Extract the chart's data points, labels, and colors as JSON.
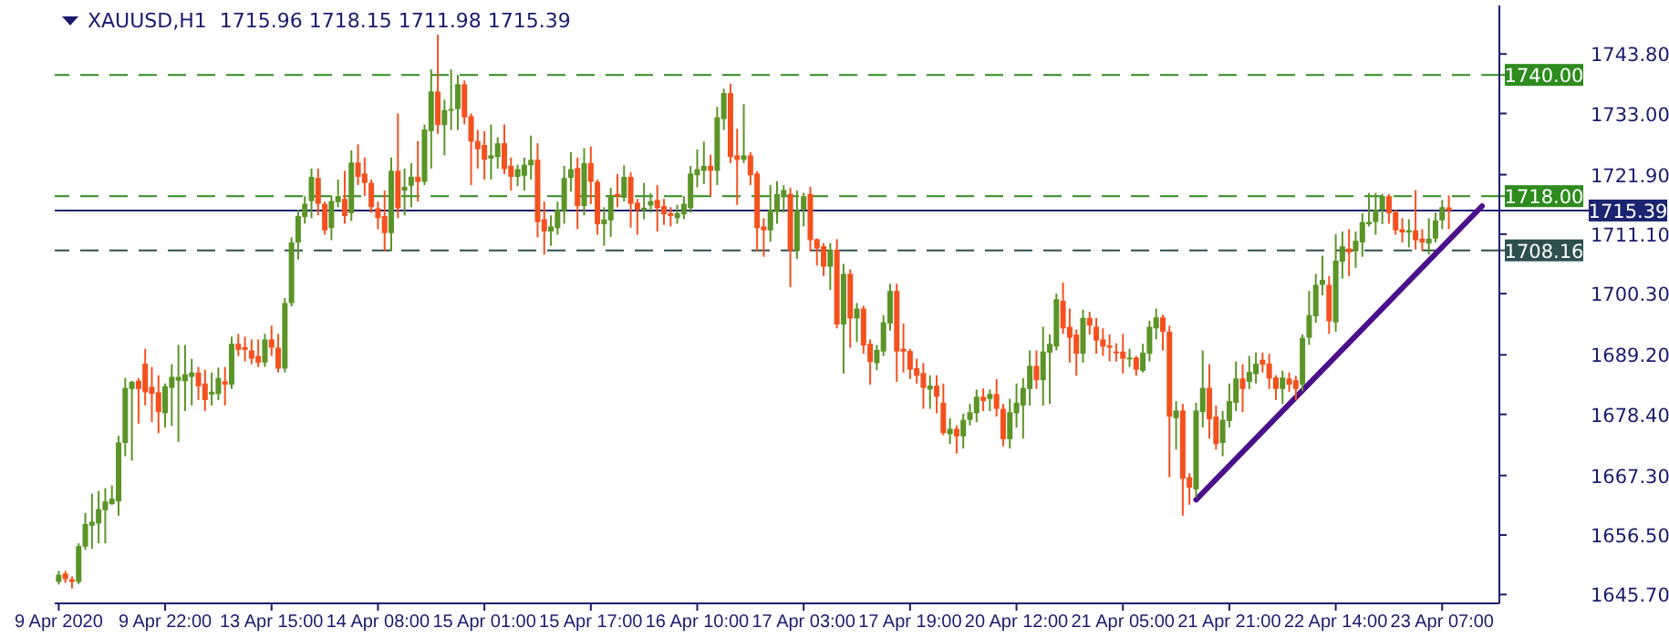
{
  "chart_data": {
    "type": "candlestick",
    "title": "XAUUSD,H1  1715.96 1718.15 1711.98 1715.39",
    "categories": [
      "9 Apr 2020",
      null,
      null,
      null,
      null,
      null,
      null,
      null,
      null,
      null,
      null,
      null,
      null,
      null,
      null,
      null,
      "9 Apr 22:00",
      null,
      null,
      null,
      null,
      null,
      null,
      null,
      null,
      null,
      null,
      null,
      null,
      null,
      null,
      null,
      "13 Apr 15:00",
      null,
      null,
      null,
      null,
      null,
      null,
      null,
      null,
      null,
      null,
      null,
      null,
      null,
      null,
      null,
      "14 Apr 08:00",
      null,
      null,
      null,
      null,
      null,
      null,
      null,
      null,
      null,
      null,
      null,
      null,
      null,
      null,
      null,
      "15 Apr 01:00",
      null,
      null,
      null,
      null,
      null,
      null,
      null,
      null,
      null,
      null,
      null,
      null,
      null,
      null,
      null,
      "15 Apr 17:00",
      null,
      null,
      null,
      null,
      null,
      null,
      null,
      null,
      null,
      null,
      null,
      null,
      null,
      null,
      null,
      "16 Apr 10:00",
      null,
      null,
      null,
      null,
      null,
      null,
      null,
      null,
      null,
      null,
      null,
      null,
      null,
      null,
      null,
      "17 Apr 03:00",
      null,
      null,
      null,
      null,
      null,
      null,
      null,
      null,
      null,
      null,
      null,
      null,
      null,
      null,
      null,
      "17 Apr 19:00",
      null,
      null,
      null,
      null,
      null,
      null,
      null,
      null,
      null,
      null,
      null,
      null,
      null,
      null,
      null,
      "20 Apr 12:00",
      null,
      null,
      null,
      null,
      null,
      null,
      null,
      null,
      null,
      null,
      null,
      null,
      null,
      null,
      null,
      "21 Apr 05:00",
      null,
      null,
      null,
      null,
      null,
      null,
      null,
      null,
      null,
      null,
      null,
      null,
      null,
      null,
      null,
      "21 Apr 21:00",
      null,
      null,
      null,
      null,
      null,
      null,
      null,
      null,
      null,
      null,
      null,
      null,
      null,
      null,
      null,
      "22 Apr 14:00",
      null,
      null,
      null,
      null,
      null,
      null,
      null,
      null,
      null,
      null,
      null,
      null,
      null,
      null,
      null,
      "23 Apr 07:00",
      null,
      null,
      null,
      null,
      null,
      null,
      null,
      null
    ],
    "series": [
      {
        "type": "candlestick",
        "ohlc": [
          [
            1648,
            1650,
            1647.5,
            1649.3
          ],
          [
            1649.5,
            1650,
            1647.8,
            1648.5
          ],
          [
            1648.5,
            1649,
            1646.8,
            1648
          ],
          [
            1648,
            1655,
            1647.6,
            1654.5
          ],
          [
            1654.4,
            1660.5,
            1653.8,
            1658.5
          ],
          [
            1658.2,
            1664,
            1654,
            1658.9
          ],
          [
            1658.6,
            1664.5,
            1655,
            1661.2
          ],
          [
            1661,
            1665,
            1655,
            1662.6
          ],
          [
            1662.1,
            1665.5,
            1662,
            1663.1
          ],
          [
            1662.6,
            1674.5,
            1660,
            1673.3
          ],
          [
            1673.2,
            1685,
            1670.8,
            1683.2
          ],
          [
            1683,
            1684.5,
            1670,
            1684.3
          ],
          [
            1684.5,
            1685,
            1676.7,
            1683
          ],
          [
            1687.6,
            1690.3,
            1680,
            1682.4
          ],
          [
            1683.4,
            1687,
            1677,
            1682.1
          ],
          [
            1682.4,
            1685.5,
            1675,
            1678.8
          ],
          [
            1678.6,
            1684,
            1676,
            1683.5
          ],
          [
            1683.2,
            1687.5,
            1676.3,
            1685.2
          ],
          [
            1684.5,
            1691,
            1673.4,
            1685.2
          ],
          [
            1684.4,
            1691,
            1679,
            1685.7
          ],
          [
            1685.2,
            1688.5,
            1680,
            1686
          ],
          [
            1686,
            1687,
            1681,
            1683.5
          ],
          [
            1684,
            1686.5,
            1679,
            1681
          ],
          [
            1682,
            1686,
            1680,
            1682.5
          ],
          [
            1682.1,
            1686.9,
            1681,
            1685
          ],
          [
            1684.4,
            1687,
            1680,
            1683.8
          ],
          [
            1683.8,
            1692.5,
            1683,
            1691.2
          ],
          [
            1691.2,
            1693,
            1689,
            1690.1
          ],
          [
            1690.6,
            1692.5,
            1688,
            1690.1
          ],
          [
            1690,
            1692,
            1687.5,
            1688.5
          ],
          [
            1689,
            1692,
            1687,
            1687.8
          ],
          [
            1687.8,
            1693,
            1687,
            1692
          ],
          [
            1692,
            1694.5,
            1689,
            1690.5
          ],
          [
            1690.5,
            1693,
            1686,
            1686.7
          ],
          [
            1686.7,
            1699.5,
            1686,
            1698.6
          ],
          [
            1698.6,
            1710.5,
            1698,
            1709.6
          ],
          [
            1709.6,
            1715.5,
            1706.5,
            1714.4
          ],
          [
            1714.2,
            1718,
            1713,
            1716.6
          ],
          [
            1717.1,
            1723,
            1714,
            1721.5
          ],
          [
            1721.3,
            1723,
            1714.5,
            1716.6
          ],
          [
            1716.6,
            1717,
            1711,
            1711.8
          ],
          [
            1712.2,
            1718,
            1710,
            1717.1
          ],
          [
            1716.9,
            1721,
            1716,
            1718
          ],
          [
            1717.5,
            1722.6,
            1713,
            1714.4
          ],
          [
            1714.9,
            1726.3,
            1713.5,
            1724.1
          ],
          [
            1724.1,
            1727.4,
            1720,
            1721.5
          ],
          [
            1722.1,
            1725,
            1718,
            1720.4
          ],
          [
            1720.4,
            1721,
            1715,
            1716
          ],
          [
            1715.8,
            1717,
            1712,
            1714
          ],
          [
            1714.4,
            1719,
            1708,
            1711.3
          ],
          [
            1711.3,
            1725,
            1708,
            1722.6
          ],
          [
            1722.6,
            1733,
            1714,
            1715.8
          ],
          [
            1719,
            1723,
            1714.5,
            1719.7
          ],
          [
            1719.9,
            1724,
            1716,
            1721.5
          ],
          [
            1721.5,
            1728,
            1717,
            1720.6
          ],
          [
            1720.6,
            1731,
            1720,
            1730.1
          ],
          [
            1729.8,
            1741,
            1723,
            1737
          ],
          [
            1737,
            1747.3,
            1729.3,
            1730.9
          ],
          [
            1730.9,
            1735.5,
            1725.4,
            1733.6
          ],
          [
            1733.6,
            1741,
            1730,
            1733.8
          ],
          [
            1733.8,
            1740,
            1730,
            1738.3
          ],
          [
            1738.3,
            1739,
            1731,
            1732.3
          ],
          [
            1732.5,
            1733,
            1720,
            1727.9
          ],
          [
            1728,
            1730,
            1723,
            1726.5
          ],
          [
            1727.3,
            1729.8,
            1721,
            1724.6
          ],
          [
            1724.8,
            1731,
            1721,
            1725.4
          ],
          [
            1725.1,
            1728.7,
            1723,
            1727.6
          ],
          [
            1727.6,
            1731,
            1722,
            1722.9
          ],
          [
            1723.5,
            1725,
            1719,
            1721.5
          ],
          [
            1721.5,
            1723.7,
            1719.8,
            1722.9
          ],
          [
            1721.7,
            1725,
            1719,
            1723.7
          ],
          [
            1723.6,
            1729,
            1721,
            1724.6
          ],
          [
            1724.6,
            1727.6,
            1710.5,
            1713.3
          ],
          [
            1713.8,
            1717,
            1707.4,
            1711.6
          ],
          [
            1711.6,
            1714.5,
            1709,
            1712.5
          ],
          [
            1712.2,
            1717,
            1711,
            1715.5
          ],
          [
            1715.3,
            1723.5,
            1713,
            1721.3
          ],
          [
            1721.3,
            1726,
            1718.8,
            1722.9
          ],
          [
            1723.1,
            1725,
            1712,
            1716.2
          ],
          [
            1716.2,
            1726.7,
            1714.5,
            1724
          ],
          [
            1724,
            1727,
            1716.5,
            1720.6
          ],
          [
            1720.6,
            1721,
            1711,
            1712.9
          ],
          [
            1712.9,
            1716,
            1709,
            1713.8
          ],
          [
            1713.6,
            1719.5,
            1710.6,
            1718.2
          ],
          [
            1718.4,
            1722,
            1716,
            1718
          ],
          [
            1717.7,
            1723.6,
            1717,
            1721.5
          ],
          [
            1721.5,
            1722.3,
            1712.3,
            1716.6
          ],
          [
            1716.8,
            1717.5,
            1711,
            1715.5
          ],
          [
            1715.4,
            1720.4,
            1713.8,
            1715.9
          ],
          [
            1716.3,
            1718.5,
            1715,
            1717.1
          ],
          [
            1717.3,
            1720,
            1711.6,
            1715.8
          ],
          [
            1716.2,
            1717.5,
            1712.8,
            1714.7
          ],
          [
            1714.9,
            1716,
            1712.5,
            1714.4
          ],
          [
            1714,
            1716.4,
            1713,
            1714.9
          ],
          [
            1714.7,
            1718,
            1713.8,
            1716.6
          ],
          [
            1715.8,
            1723.5,
            1715,
            1722.1
          ],
          [
            1721.8,
            1726.5,
            1719.6,
            1722.9
          ],
          [
            1722.6,
            1727.9,
            1720.2,
            1723.5
          ],
          [
            1723.5,
            1725.5,
            1718,
            1722.6
          ],
          [
            1722.6,
            1734.2,
            1720,
            1732.3
          ],
          [
            1732,
            1737.5,
            1730,
            1736.7
          ],
          [
            1736.7,
            1738.4,
            1724,
            1725.1
          ],
          [
            1725.4,
            1730.2,
            1716.4,
            1724.6
          ],
          [
            1724.6,
            1734.7,
            1724,
            1725.4
          ],
          [
            1725.4,
            1726,
            1720,
            1721.8
          ],
          [
            1722.1,
            1722.5,
            1708,
            1712.2
          ],
          [
            1712.5,
            1714,
            1707,
            1711.8
          ],
          [
            1711.8,
            1720,
            1709.7,
            1715.5
          ],
          [
            1715.1,
            1720.7,
            1713,
            1718.4
          ],
          [
            1718.2,
            1720,
            1715,
            1719.1
          ],
          [
            1718.4,
            1719.5,
            1701.5,
            1708.1
          ],
          [
            1708.1,
            1719,
            1706.6,
            1715.5
          ],
          [
            1715.5,
            1718.6,
            1712.5,
            1718
          ],
          [
            1718.4,
            1719.7,
            1708,
            1710
          ],
          [
            1710.2,
            1710.3,
            1705.4,
            1708.5
          ],
          [
            1708.9,
            1709.5,
            1703.5,
            1705.2
          ],
          [
            1705.2,
            1709.5,
            1701,
            1708.3
          ],
          [
            1708.3,
            1710.2,
            1694,
            1694.7
          ],
          [
            1694.7,
            1705.7,
            1685.8,
            1703.9
          ],
          [
            1703.9,
            1704.7,
            1690.5,
            1695.8
          ],
          [
            1695.8,
            1698.6,
            1691.5,
            1697.6
          ],
          [
            1697.6,
            1698.1,
            1689.4,
            1690.9
          ],
          [
            1691.2,
            1692,
            1683.8,
            1687.9
          ],
          [
            1687.7,
            1691,
            1686.4,
            1690.1
          ],
          [
            1689.8,
            1696.4,
            1689,
            1695.1
          ],
          [
            1694.9,
            1702.1,
            1693.6,
            1700.8
          ],
          [
            1700.8,
            1702.1,
            1684.3,
            1689.8
          ],
          [
            1690.3,
            1694.9,
            1686,
            1689.8
          ],
          [
            1689.9,
            1690.3,
            1684.8,
            1686.5
          ],
          [
            1686.8,
            1688.5,
            1684,
            1685.4
          ],
          [
            1685.9,
            1687.7,
            1679.4,
            1683.2
          ],
          [
            1682.9,
            1685.5,
            1679.4,
            1683.6
          ],
          [
            1683.6,
            1685.5,
            1678.6,
            1681.6
          ],
          [
            1680.5,
            1684,
            1674.6,
            1675
          ],
          [
            1674.8,
            1677.7,
            1673,
            1675.8
          ],
          [
            1675.8,
            1676.4,
            1671.3,
            1674.4
          ],
          [
            1674.4,
            1678.5,
            1672.2,
            1677.4
          ],
          [
            1677.4,
            1680.3,
            1676.4,
            1678.8
          ],
          [
            1678.6,
            1682.9,
            1677,
            1681.6
          ],
          [
            1681.6,
            1683.1,
            1679,
            1680.8
          ],
          [
            1681.2,
            1682.9,
            1679,
            1682.1
          ],
          [
            1682.1,
            1684.8,
            1678,
            1679.4
          ],
          [
            1679.4,
            1680.3,
            1672.6,
            1673.9
          ],
          [
            1673.9,
            1681.2,
            1672.2,
            1678.8
          ],
          [
            1678.6,
            1684,
            1676,
            1680.5
          ],
          [
            1680,
            1685,
            1674,
            1683.2
          ],
          [
            1683,
            1690,
            1680,
            1687.2
          ],
          [
            1687.2,
            1690,
            1683,
            1684.6
          ],
          [
            1684.6,
            1694.3,
            1680,
            1689.8
          ],
          [
            1689.6,
            1692.9,
            1680.3,
            1691.2
          ],
          [
            1690.7,
            1700.3,
            1690,
            1699.3
          ],
          [
            1699,
            1702.3,
            1693,
            1694
          ],
          [
            1694.3,
            1697.6,
            1687.8,
            1692.3
          ],
          [
            1692.9,
            1693.8,
            1685.4,
            1689.4
          ],
          [
            1689.4,
            1697.4,
            1687.8,
            1695.9
          ],
          [
            1695.9,
            1697,
            1692.9,
            1694.5
          ],
          [
            1694.3,
            1695.9,
            1689.4,
            1691.8
          ],
          [
            1692,
            1694,
            1689,
            1690.7
          ],
          [
            1690.9,
            1692.9,
            1688,
            1690.5
          ],
          [
            1689.8,
            1691.3,
            1688,
            1689.6
          ],
          [
            1689.8,
            1693,
            1685.8,
            1688.5
          ],
          [
            1688.5,
            1690.3,
            1687,
            1688.7
          ],
          [
            1688.7,
            1689,
            1685.4,
            1686.5
          ],
          [
            1686.3,
            1691.2,
            1686,
            1689.6
          ],
          [
            1689.4,
            1695.4,
            1688,
            1694.3
          ],
          [
            1694,
            1697.6,
            1692,
            1696
          ],
          [
            1696,
            1696.5,
            1690,
            1693.4
          ],
          [
            1693.4,
            1694.5,
            1667,
            1678
          ],
          [
            1677.7,
            1680.8,
            1672,
            1679.1
          ],
          [
            1679.1,
            1680.3,
            1660,
            1666.7
          ],
          [
            1667,
            1667.7,
            1662,
            1665.1
          ],
          [
            1664.8,
            1680.5,
            1663.3,
            1679.1
          ],
          [
            1678.8,
            1690,
            1676,
            1683.2
          ],
          [
            1683.2,
            1687.5,
            1674,
            1677.5
          ],
          [
            1678,
            1680,
            1672,
            1673
          ],
          [
            1673.2,
            1679,
            1670.8,
            1677.4
          ],
          [
            1677.2,
            1684,
            1676,
            1680.8
          ],
          [
            1680.5,
            1688,
            1679,
            1684.9
          ],
          [
            1684.9,
            1687.5,
            1678.8,
            1683
          ],
          [
            1684.3,
            1689,
            1683,
            1686.1
          ],
          [
            1685.7,
            1689.6,
            1684,
            1687.6
          ],
          [
            1688.3,
            1689.6,
            1686,
            1687.4
          ],
          [
            1687.6,
            1689.4,
            1683,
            1684.9
          ],
          [
            1685.1,
            1685.5,
            1681,
            1683
          ],
          [
            1683,
            1686.3,
            1680.3,
            1685.1
          ],
          [
            1684.9,
            1686,
            1682.5,
            1683.8
          ],
          [
            1684.6,
            1685.4,
            1681,
            1683
          ],
          [
            1683.8,
            1692.9,
            1682.6,
            1692.3
          ],
          [
            1692.3,
            1700.8,
            1691,
            1696.4
          ],
          [
            1696.2,
            1703.9,
            1695,
            1701.9
          ],
          [
            1701.9,
            1707.2,
            1700,
            1702.8
          ],
          [
            1701.9,
            1703.5,
            1693,
            1695.3
          ],
          [
            1695.1,
            1711.1,
            1693.4,
            1706.3
          ],
          [
            1706.1,
            1711.6,
            1703,
            1708.9
          ],
          [
            1708.5,
            1712,
            1703.5,
            1707.8
          ],
          [
            1708,
            1711.6,
            1705,
            1709.9
          ],
          [
            1709.6,
            1714.9,
            1707,
            1713.3
          ],
          [
            1712.9,
            1718.6,
            1712.5,
            1713.3
          ],
          [
            1713.3,
            1718.6,
            1711,
            1715.5
          ],
          [
            1715.5,
            1718.4,
            1712.9,
            1718
          ],
          [
            1718,
            1718.4,
            1713,
            1714.9
          ],
          [
            1715.1,
            1715.5,
            1711,
            1711.8
          ],
          [
            1712,
            1714,
            1709.6,
            1711.4
          ],
          [
            1711.4,
            1713.8,
            1708.7,
            1711.8
          ],
          [
            1711.8,
            1719.1,
            1708.3,
            1710
          ],
          [
            1710.3,
            1712,
            1708,
            1709.6
          ],
          [
            1709.4,
            1714,
            1707.4,
            1710.3
          ],
          [
            1710.3,
            1715,
            1709.6,
            1713.6
          ],
          [
            1713.6,
            1717.3,
            1712,
            1716
          ],
          [
            1715.96,
            1718.15,
            1711.98,
            1715.39
          ],
          null,
          null,
          null,
          null,
          null,
          null,
          null
        ],
        "colors": [
          "#5b9427",
          "#f4511e",
          "#f4511e",
          "#5b9427",
          "#5b9427",
          "#5b9427",
          "#5b9427",
          "#5b9427",
          "#5b9427",
          "#5b9427",
          "#5b9427",
          "#5b9427",
          "#f4511e",
          "#f4511e",
          "#f4511e",
          "#f4511e",
          "#5b9427",
          "#5b9427",
          "#5b9427",
          "#5b9427",
          "#5b9427",
          "#f4511e",
          "#f4511e",
          "#5b9427",
          "#5b9427",
          "#f4511e",
          "#5b9427",
          "#f4511e",
          "#f4511e",
          "#f4511e",
          "#f4511e",
          "#5b9427",
          "#f4511e",
          "#f4511e",
          "#5b9427",
          "#5b9427",
          "#5b9427",
          "#5b9427",
          "#5b9427",
          "#f4511e",
          "#f4511e",
          "#5b9427",
          "#5b9427",
          "#f4511e",
          "#5b9427",
          "#f4511e",
          "#f4511e",
          "#f4511e",
          "#f4511e",
          "#f4511e",
          "#5b9427",
          "#f4511e",
          "#5b9427",
          "#5b9427",
          "#f4511e",
          "#5b9427",
          "#5b9427",
          "#f4511e",
          "#5b9427",
          "#5b9427",
          "#5b9427",
          "#f4511e",
          "#f4511e",
          "#f4511e",
          "#f4511e",
          "#5b9427",
          "#5b9427",
          "#f4511e",
          "#f4511e",
          "#5b9427",
          "#5b9427",
          "#5b9427",
          "#f4511e",
          "#f4511e",
          "#5b9427",
          "#5b9427",
          "#5b9427",
          "#5b9427",
          "#f4511e",
          "#5b9427",
          "#f4511e",
          "#f4511e",
          "#5b9427",
          "#5b9427",
          "#f4511e",
          "#5b9427",
          "#f4511e",
          "#f4511e",
          "#5b9427",
          "#5b9427",
          "#f4511e",
          "#f4511e",
          "#f4511e",
          "#5b9427",
          "#5b9427",
          "#5b9427",
          "#5b9427",
          "#5b9427",
          "#f4511e",
          "#5b9427",
          "#5b9427",
          "#f4511e",
          "#f4511e",
          "#5b9427",
          "#f4511e",
          "#f4511e",
          "#f4511e",
          "#5b9427",
          "#5b9427",
          "#5b9427",
          "#f4511e",
          "#5b9427",
          "#5b9427",
          "#f4511e",
          "#f4511e",
          "#f4511e",
          "#5b9427",
          "#f4511e",
          "#5b9427",
          "#f4511e",
          "#5b9427",
          "#f4511e",
          "#f4511e",
          "#5b9427",
          "#5b9427",
          "#5b9427",
          "#f4511e",
          "#f4511e",
          "#f4511e",
          "#f4511e",
          "#f4511e",
          "#5b9427",
          "#f4511e",
          "#f4511e",
          "#5b9427",
          "#f4511e",
          "#5b9427",
          "#5b9427",
          "#5b9427",
          "#f4511e",
          "#5b9427",
          "#f4511e",
          "#f4511e",
          "#5b9427",
          "#5b9427",
          "#5b9427",
          "#5b9427",
          "#f4511e",
          "#5b9427",
          "#5b9427",
          "#5b9427",
          "#f4511e",
          "#f4511e",
          "#f4511e",
          "#5b9427",
          "#f4511e",
          "#f4511e",
          "#f4511e",
          "#f4511e",
          "#f4511e",
          "#f4511e",
          "#5b9427",
          "#f4511e",
          "#5b9427",
          "#5b9427",
          "#5b9427",
          "#f4511e",
          "#f4511e",
          "#5b9427",
          "#f4511e",
          "#f4511e",
          "#5b9427",
          "#5b9427",
          "#f4511e",
          "#f4511e",
          "#5b9427",
          "#5b9427",
          "#5b9427",
          "#f4511e",
          "#5b9427",
          "#5b9427",
          "#f4511e",
          "#f4511e",
          "#f4511e",
          "#5b9427",
          "#f4511e",
          "#f4511e",
          "#5b9427",
          "#5b9427",
          "#5b9427",
          "#5b9427",
          "#f4511e",
          "#5b9427",
          "#5b9427",
          "#f4511e",
          "#5b9427",
          "#5b9427",
          "#5b9427",
          "#5b9427",
          "#5b9427",
          "#f4511e",
          "#f4511e",
          "#f4511e",
          "#5b9427",
          "#f4511e",
          "#f4511e",
          "#5b9427",
          "#5b9427",
          "#5b9427",
          "#f4511e",
          null,
          null,
          null,
          null,
          null,
          null,
          null
        ]
      },
      {
        "type": "line",
        "color": "#4b0f8c",
        "values": [
          null,
          null,
          null,
          null,
          null,
          null,
          null,
          null,
          null,
          null,
          null,
          null,
          null,
          null,
          null,
          null,
          null,
          null,
          null,
          null,
          null,
          null,
          null,
          null,
          null,
          null,
          null,
          null,
          null,
          null,
          null,
          null,
          null,
          null,
          null,
          null,
          null,
          null,
          null,
          null,
          null,
          null,
          null,
          null,
          null,
          null,
          null,
          null,
          null,
          null,
          null,
          null,
          null,
          null,
          null,
          null,
          null,
          null,
          null,
          null,
          null,
          null,
          null,
          null,
          null,
          null,
          null,
          null,
          null,
          null,
          null,
          null,
          null,
          null,
          null,
          null,
          null,
          null,
          null,
          null,
          null,
          null,
          null,
          null,
          null,
          null,
          null,
          null,
          null,
          null,
          null,
          null,
          null,
          null,
          null,
          null,
          null,
          null,
          null,
          null,
          null,
          null,
          null,
          null,
          null,
          null,
          null,
          null,
          null,
          null,
          null,
          null,
          null,
          null,
          null,
          null,
          null,
          null,
          null,
          null,
          null,
          null,
          null,
          null,
          null,
          null,
          null,
          null,
          null,
          null,
          null,
          null,
          null,
          null,
          null,
          null,
          null,
          null,
          null,
          null,
          null,
          null,
          null,
          null,
          null,
          null,
          null,
          null,
          null,
          null,
          null,
          null,
          null,
          null,
          null,
          null,
          null,
          null,
          null,
          null,
          null,
          null,
          null,
          null,
          null,
          null,
          null,
          null,
          null,
          null,
          null,
          1662.9,
          null,
          null,
          null,
          null,
          null,
          null,
          null,
          null,
          null,
          null,
          null,
          null,
          null,
          null,
          null,
          null,
          null,
          null,
          null,
          null,
          null,
          null,
          null,
          null,
          null,
          null,
          null,
          null,
          null,
          null,
          null,
          null,
          null,
          null,
          null,
          null,
          null,
          null,
          null,
          null,
          null,
          null,
          1716.2,
          null,
          null
        ]
      }
    ],
    "ylim": [
      1644.1,
      1752.6
    ],
    "yticks": [
      {
        "value": 1645.7,
        "label": "1645.70"
      },
      {
        "value": 1656.5,
        "label": "1656.50"
      },
      {
        "value": 1667.3,
        "label": "1667.30"
      },
      {
        "value": 1678.4,
        "label": "1678.40"
      },
      {
        "value": 1689.2,
        "label": "1689.20"
      },
      {
        "value": 1700.3,
        "label": "1700.30"
      },
      {
        "value": 1711.1,
        "label": "1711.10"
      },
      {
        "value": 1721.9,
        "label": "1721.90"
      },
      {
        "value": 1733,
        "label": "1733.00"
      },
      {
        "value": 1743.8,
        "label": "1743.80"
      }
    ],
    "ref_lines": [
      {
        "axis": "y",
        "value": 1740,
        "label": "1740.00",
        "color": "#2e8b1e",
        "line_style": "dashed"
      },
      {
        "axis": "y",
        "value": 1718,
        "label": "1718.00",
        "color": "#2e8b1e",
        "line_style": "dashed"
      },
      {
        "axis": "y",
        "value": 1715.39,
        "label": "1715.39",
        "color": "#1c2370",
        "line_style": "solid"
      },
      {
        "axis": "y",
        "value": 1708.16,
        "label": "1708.16",
        "color": "#2f4f4f",
        "line_style": "dashed"
      }
    ]
  }
}
